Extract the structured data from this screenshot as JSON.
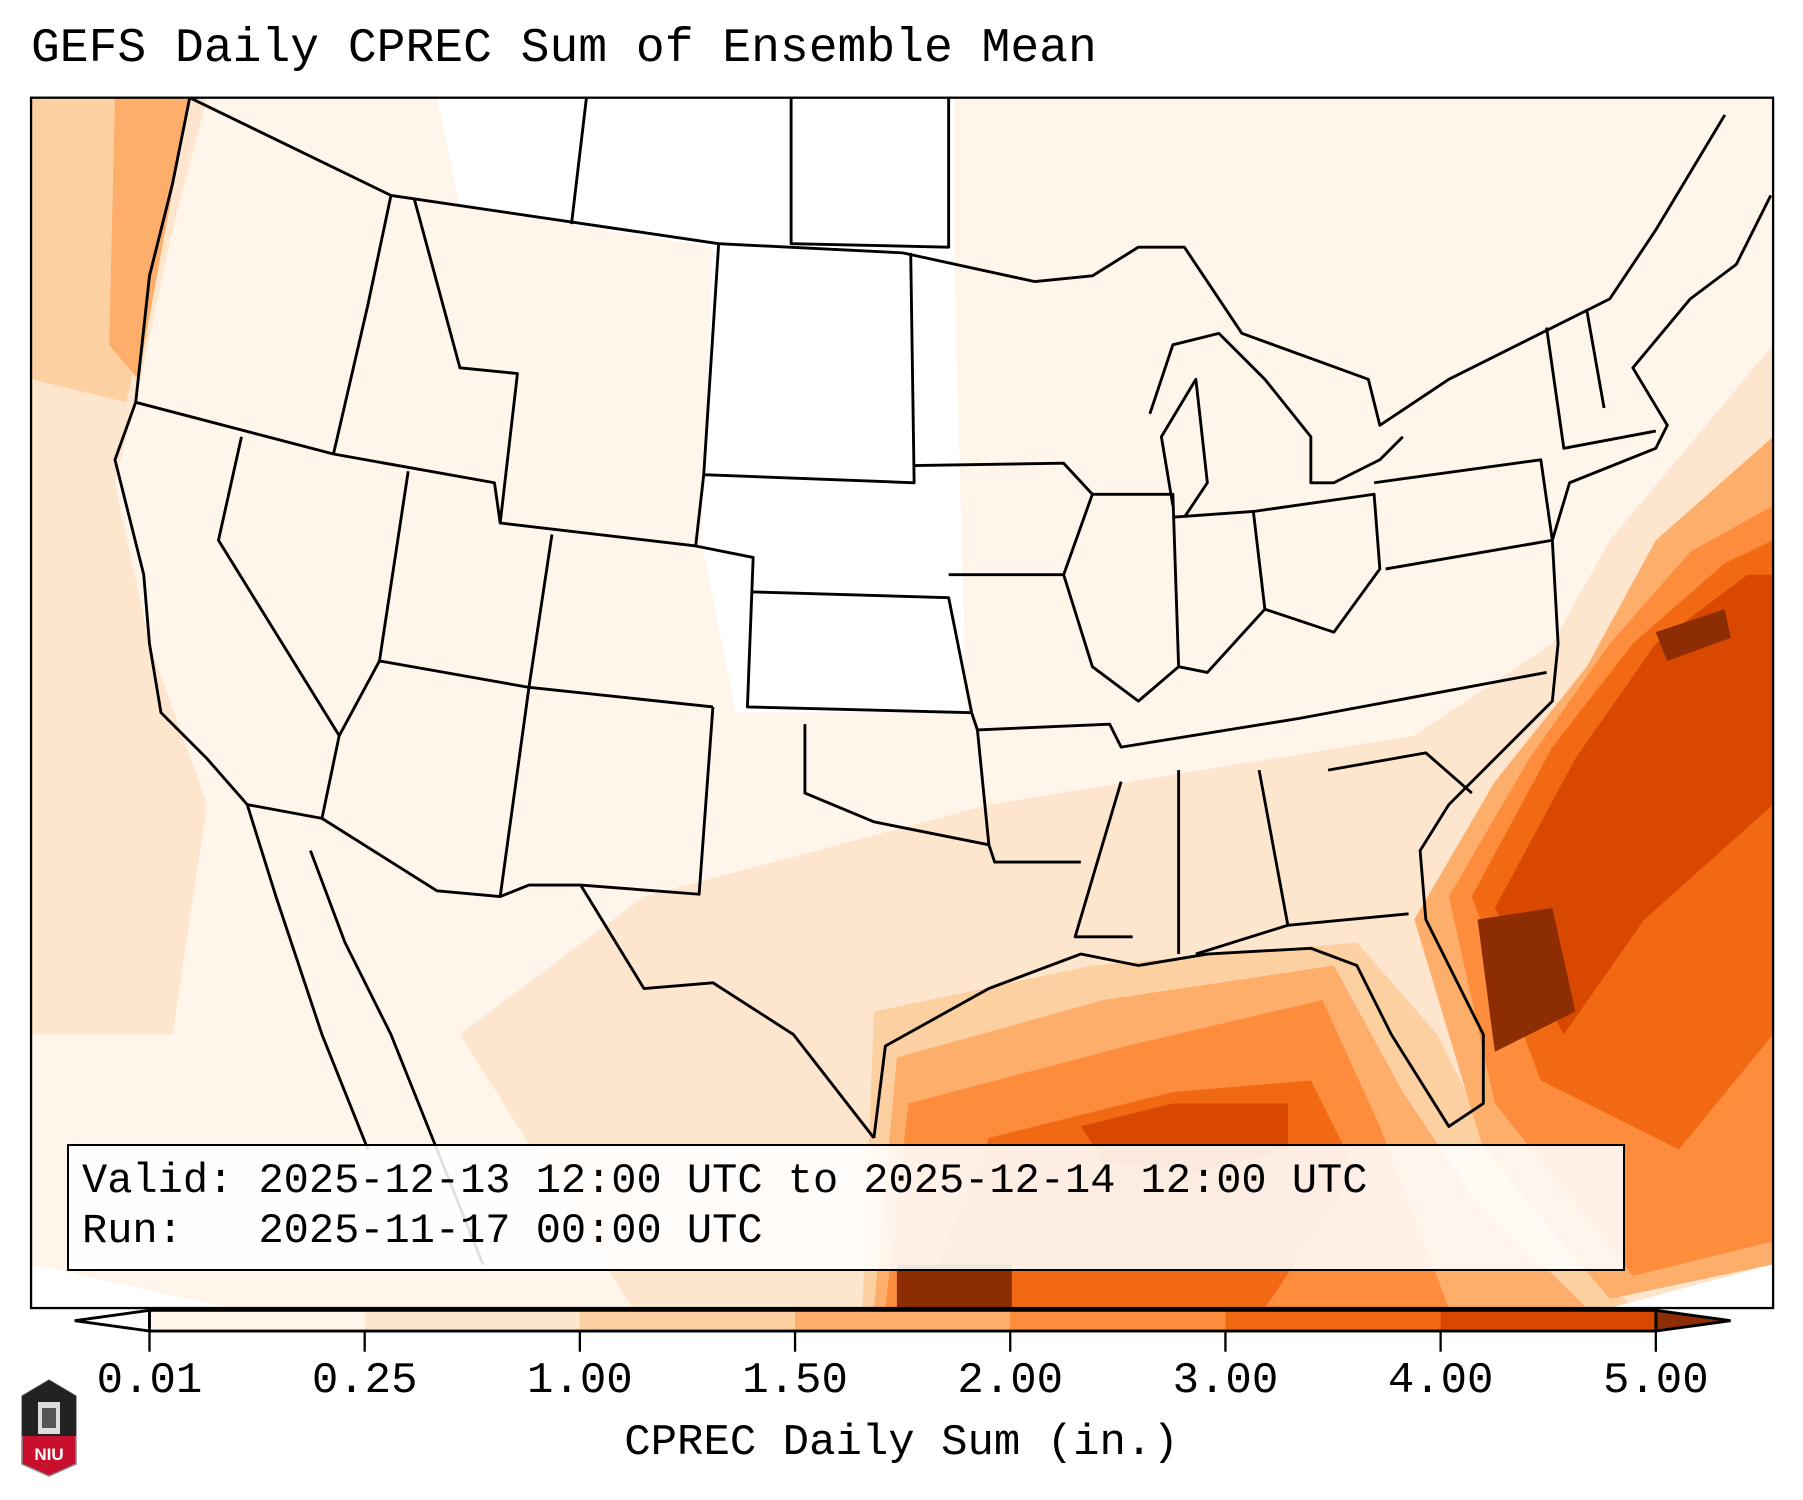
{
  "title": "GEFS Daily CPREC Sum of Ensemble Mean",
  "legend": {
    "valid_label": "Valid:",
    "valid_value": "2025-12-13 12:00 UTC to 2025-12-14 12:00 UTC",
    "run_label": "Run:",
    "run_value": "2025-11-17 00:00 UTC"
  },
  "logo_text": "NIU",
  "chart_data": {
    "type": "heatmap",
    "title": "GEFS Daily CPREC Sum of Ensemble Mean",
    "region": "Contiguous United States",
    "colorbar": {
      "label": "CPREC Daily Sum (in.)",
      "ticks": [
        "0.01",
        "0.25",
        "1.00",
        "1.50",
        "2.00",
        "3.00",
        "4.00",
        "5.00"
      ],
      "levels": [
        0.01,
        0.25,
        1.0,
        1.5,
        2.0,
        3.0,
        4.0,
        5.0
      ],
      "colors": [
        "#fff5eb",
        "#fee6ce",
        "#fdd0a2",
        "#fdae6b",
        "#fd8d3c",
        "#f16913",
        "#d94801"
      ],
      "under_color": "#ffffff",
      "over_color": "#8c2d04",
      "extend": "both"
    },
    "features": [
      {
        "area": "Atlantic off Southeast coast",
        "range": "3.00 to >5.00"
      },
      {
        "area": "Gulf of Mexico",
        "range": "1.50 to >5.00"
      },
      {
        "area": "Pacific off West coast",
        "range": "0.25 to 1.50"
      },
      {
        "area": "Northern Plains",
        "range": "<0.01"
      }
    ]
  }
}
